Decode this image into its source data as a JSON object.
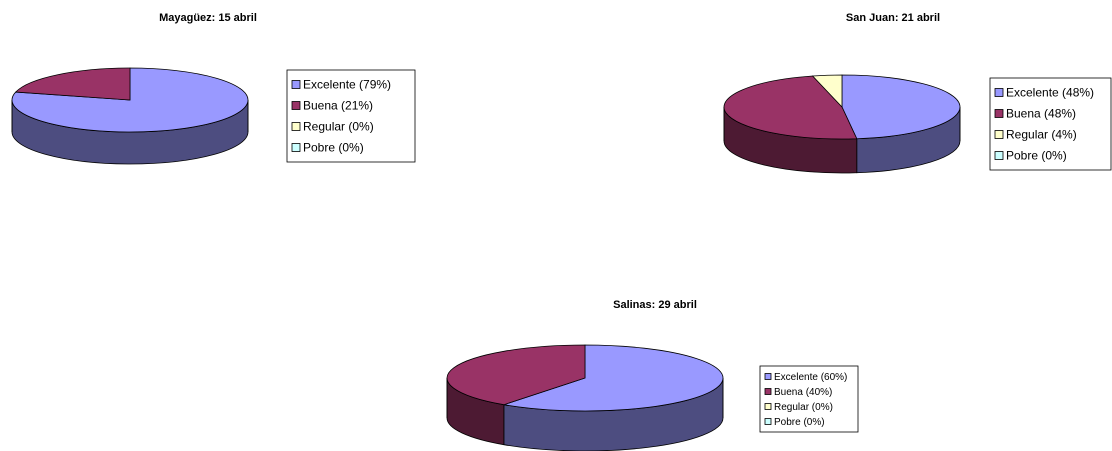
{
  "chart_data": [
    {
      "type": "pie",
      "title": "Mayagüez: 15 abril",
      "categories": [
        "Excelente (79%)",
        "Buena (21%)",
        "Regular (0%)",
        "Pobre (0%)"
      ],
      "values": [
        79,
        21,
        0,
        0
      ],
      "colors": [
        "#9999ff",
        "#993366",
        "#ffffcc",
        "#ccffff"
      ],
      "legend": "right"
    },
    {
      "type": "pie",
      "title": "San Juan: 21 abril",
      "categories": [
        "Excelente (48%)",
        "Buena (48%)",
        "Regular (4%)",
        "Pobre (0%)"
      ],
      "values": [
        48,
        48,
        4,
        0
      ],
      "colors": [
        "#9999ff",
        "#993366",
        "#ffffcc",
        "#ccffff"
      ],
      "legend": "right"
    },
    {
      "type": "pie",
      "title": "Salinas: 29 abril",
      "categories": [
        "Excelente (60%)",
        "Buena (40%)",
        "Regular (0%)",
        "Pobre (0%)"
      ],
      "values": [
        60,
        40,
        0,
        0
      ],
      "colors": [
        "#9999ff",
        "#993366",
        "#ffffcc",
        "#ccffff"
      ],
      "legend": "right"
    }
  ]
}
